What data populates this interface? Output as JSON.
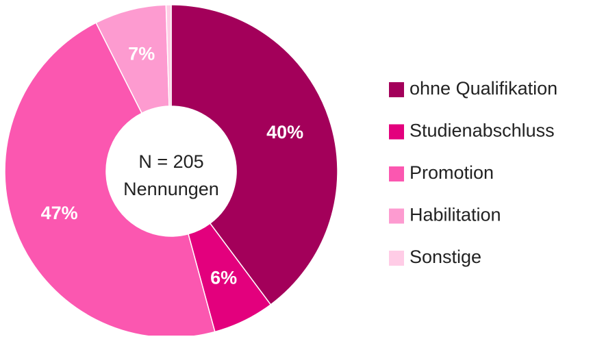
{
  "chart_data": {
    "type": "donut",
    "categories": [
      "ohne Qualifikation",
      "Studienabschluss",
      "Promotion",
      "Habilitation",
      "Sonstige"
    ],
    "values": [
      40,
      6,
      47,
      7,
      0.5
    ],
    "value_labels": [
      "40%",
      "6%",
      "47%",
      "7%",
      null
    ],
    "colors": [
      "#a3005a",
      "#e3007d",
      "#fb57b0",
      "#fd9bd0",
      "#ffcce6"
    ],
    "center_text": [
      "N = 205",
      "Nennungen"
    ]
  }
}
